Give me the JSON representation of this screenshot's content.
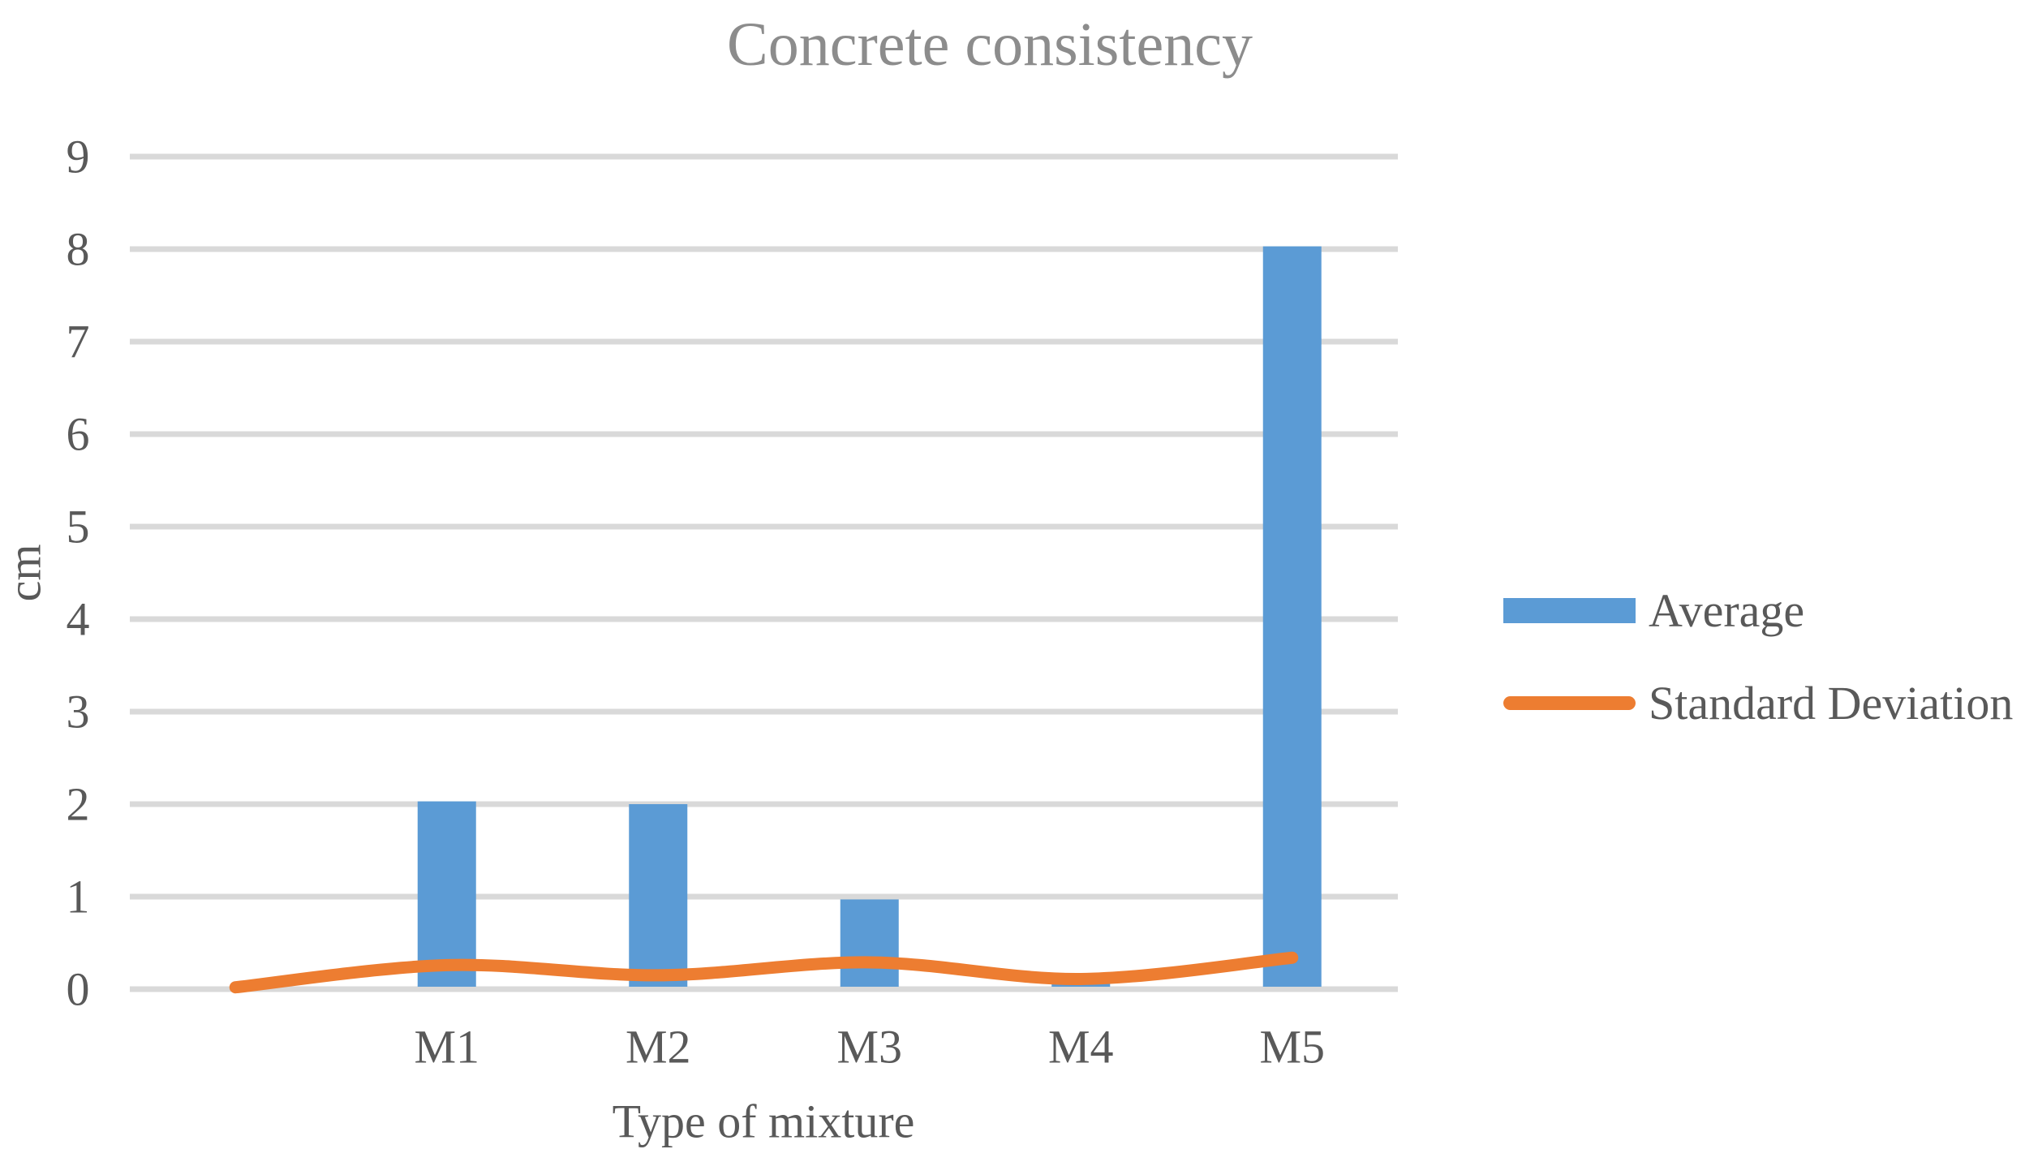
{
  "chart_data": {
    "type": "combo",
    "title": "Concrete consistency",
    "xlabel": "Type of mixture",
    "ylabel": "cm",
    "categories": [
      "",
      "M1",
      "M2",
      "M3",
      "M4",
      "M5"
    ],
    "series": [
      {
        "name": "Average",
        "type": "bar",
        "color": "#5B9BD5",
        "values": [
          null,
          2.03,
          2.0,
          0.97,
          0.07,
          8.03
        ]
      },
      {
        "name": "Standard Deviation",
        "type": "line",
        "smooth": true,
        "color": "#ED7D31",
        "values": [
          0.02,
          0.26,
          0.15,
          0.29,
          0.11,
          0.34
        ]
      }
    ],
    "ylim": [
      0,
      9
    ],
    "ytick_step": 1,
    "yticks": [
      0,
      1,
      2,
      3,
      4,
      5,
      6,
      7,
      8,
      9
    ],
    "grid": true,
    "gridline_color": "#D9D9D9",
    "axis_text_color": "#595959",
    "title_color": "#8C8C8C",
    "background_color": "#FFFFFF",
    "legend_position": "right"
  }
}
